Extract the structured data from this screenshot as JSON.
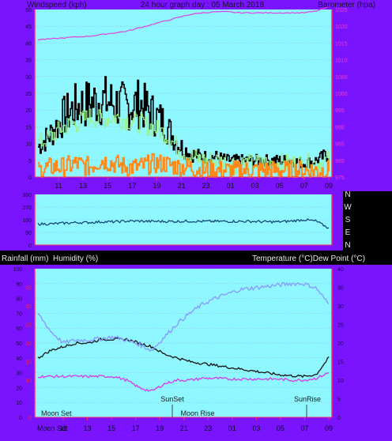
{
  "colors": {
    "panel": "#7a14ff",
    "plot_bg": "#8ef7ff",
    "axis_frame": "#ff2a6a",
    "grid": "#9aa0a6",
    "wind_avg": "#000000",
    "wind_gust": "#9cf28a",
    "wind_alt": "#ff8a1a",
    "barometer": "#e040e0",
    "direction": "#0b3f6e",
    "temperature": "#141414",
    "humidity": "#8a96ff",
    "dew_point": "#d838e8",
    "right_temp_tick": "#ff40a0",
    "left_rain_tick": "#ff2222"
  },
  "top_chart": {
    "title": "24 hour graph day : 05 March 2018",
    "left_label": "Windspeed (kph)",
    "right_label": "Barometer (hpa)",
    "x_ticks": [
      "11",
      "13",
      "15",
      "17",
      "19",
      "21",
      "23",
      "01",
      "03",
      "05",
      "07",
      "09"
    ],
    "left_ticks": [
      "0",
      "5",
      "10",
      "15",
      "20",
      "25",
      "30",
      "35",
      "40",
      "45",
      "50"
    ],
    "right_ticks": [
      "975",
      "980",
      "985",
      "990",
      "995",
      "1000",
      "1005",
      "1010",
      "1015",
      "1020",
      "1025"
    ]
  },
  "dir_chart": {
    "left_ticks": [
      "0",
      "90",
      "180",
      "270",
      "360"
    ],
    "right_letters": [
      "N",
      "W",
      "S",
      "E",
      "N"
    ]
  },
  "bottom_chart": {
    "left_label": "Rainfall (mm)  Humidity (%)",
    "right_label": "Temperature (°C)Dew Point (°C)",
    "x_ticks": [
      "11",
      "13",
      "15",
      "17",
      "19",
      "21",
      "23",
      "01",
      "03",
      "05",
      "07",
      "09"
    ],
    "left_ticks": [
      "0",
      "10",
      "20",
      "30",
      "40",
      "50",
      "60",
      "70",
      "80",
      "90",
      "100"
    ],
    "left_rain_ticks": [
      "0",
      "10",
      "15",
      "20",
      "25",
      "30",
      "35"
    ],
    "right_ticks": [
      "0",
      "5",
      "10",
      "15",
      "20",
      "25",
      "30",
      "35",
      "40"
    ],
    "events": {
      "sunset": "SunSet",
      "sunrise": "SunRise",
      "moon_set_upper": "Moon Set",
      "moon_rise": "Moon Rise",
      "moon_set_lower": "Moon Set"
    }
  },
  "chart_data": [
    {
      "type": "line",
      "title": "24 hour graph day : 05 March 2018",
      "ylabel": "Windspeed (kph)",
      "y2label": "Barometer (hpa)",
      "x": [
        "10",
        "11",
        "12",
        "13",
        "14",
        "15",
        "16",
        "17",
        "18",
        "19",
        "20",
        "21",
        "22",
        "23",
        "00",
        "01",
        "02",
        "03",
        "04",
        "05",
        "06",
        "07",
        "08",
        "09"
      ],
      "ylim": [
        0,
        50
      ],
      "y2lim": [
        975,
        1025
      ],
      "series": [
        {
          "axis": "left",
          "values": [
            9,
            13,
            18,
            21,
            22,
            23,
            22,
            21,
            22,
            19,
            16,
            10,
            7,
            6,
            6,
            5,
            5,
            5,
            5,
            5,
            5,
            4,
            5,
            7
          ]
        },
        {
          "axis": "left",
          "values": [
            10,
            12,
            15,
            16,
            18,
            17,
            18,
            17,
            16,
            15,
            13,
            9,
            6,
            5,
            5,
            4,
            4,
            4,
            4,
            4,
            4,
            4,
            4,
            5
          ]
        },
        {
          "axis": "left",
          "values": [
            2,
            3,
            3,
            4,
            3,
            5,
            4,
            3,
            3,
            4,
            4,
            3,
            3,
            2,
            2,
            2,
            2,
            2,
            2,
            2,
            2,
            2,
            2,
            2
          ]
        },
        {
          "axis": "right",
          "values": [
            1016,
            1016.2,
            1016.5,
            1016.8,
            1017,
            1017.5,
            1018,
            1018.5,
            1019.5,
            1020.5,
            1021.5,
            1022.5,
            1023.5,
            1024,
            1024.3,
            1024.3,
            1024,
            1024,
            1024,
            1024,
            1024,
            1024,
            1024.5,
            1025.8
          ]
        }
      ]
    },
    {
      "type": "line",
      "ylim": [
        0,
        360
      ],
      "y_ticks": [
        0,
        90,
        180,
        270,
        360
      ],
      "x": [
        "10",
        "11",
        "12",
        "13",
        "14",
        "15",
        "16",
        "17",
        "18",
        "19",
        "20",
        "21",
        "22",
        "23",
        "00",
        "01",
        "02",
        "03",
        "04",
        "05",
        "06",
        "07",
        "08",
        "09"
      ],
      "series": [
        {
          "values": [
            150,
            150,
            155,
            160,
            160,
            165,
            165,
            170,
            170,
            168,
            168,
            168,
            170,
            168,
            168,
            168,
            168,
            168,
            165,
            165,
            170,
            180,
            170,
            120
          ]
        }
      ]
    },
    {
      "type": "line",
      "ylabel": "Rainfall (mm)  Humidity (%)",
      "y2label": "Temperature (°C)Dew Point (°C)",
      "x": [
        "10",
        "11",
        "12",
        "13",
        "14",
        "15",
        "16",
        "17",
        "18",
        "19",
        "20",
        "21",
        "22",
        "23",
        "00",
        "01",
        "02",
        "03",
        "04",
        "05",
        "06",
        "07",
        "08",
        "09"
      ],
      "ylim": [
        0,
        100
      ],
      "y2lim": [
        0,
        40
      ],
      "events": [
        "SunSet",
        "SunRise",
        "Moon Set",
        "Moon Rise"
      ],
      "series": [
        {
          "axis": "right",
          "values": [
            16,
            18,
            19,
            20,
            20,
            21,
            21,
            21,
            20,
            19,
            17,
            16,
            15,
            14.5,
            14,
            13.5,
            13,
            12.5,
            12,
            11.5,
            11.2,
            11,
            11.5,
            16
          ]
        },
        {
          "axis": "left",
          "values": [
            70,
            58,
            50,
            52,
            52,
            53,
            54,
            52,
            49,
            45,
            54,
            63,
            70,
            76,
            80,
            83,
            86,
            87,
            88,
            89,
            90,
            90,
            87,
            76
          ]
        },
        {
          "axis": "right",
          "values": [
            11,
            11,
            11,
            11,
            11,
            11,
            11,
            10,
            8,
            7,
            9,
            10,
            10,
            10.5,
            10.5,
            10.3,
            10.3,
            10.3,
            10.3,
            10.3,
            10,
            10,
            10.5,
            12
          ]
        }
      ]
    }
  ]
}
